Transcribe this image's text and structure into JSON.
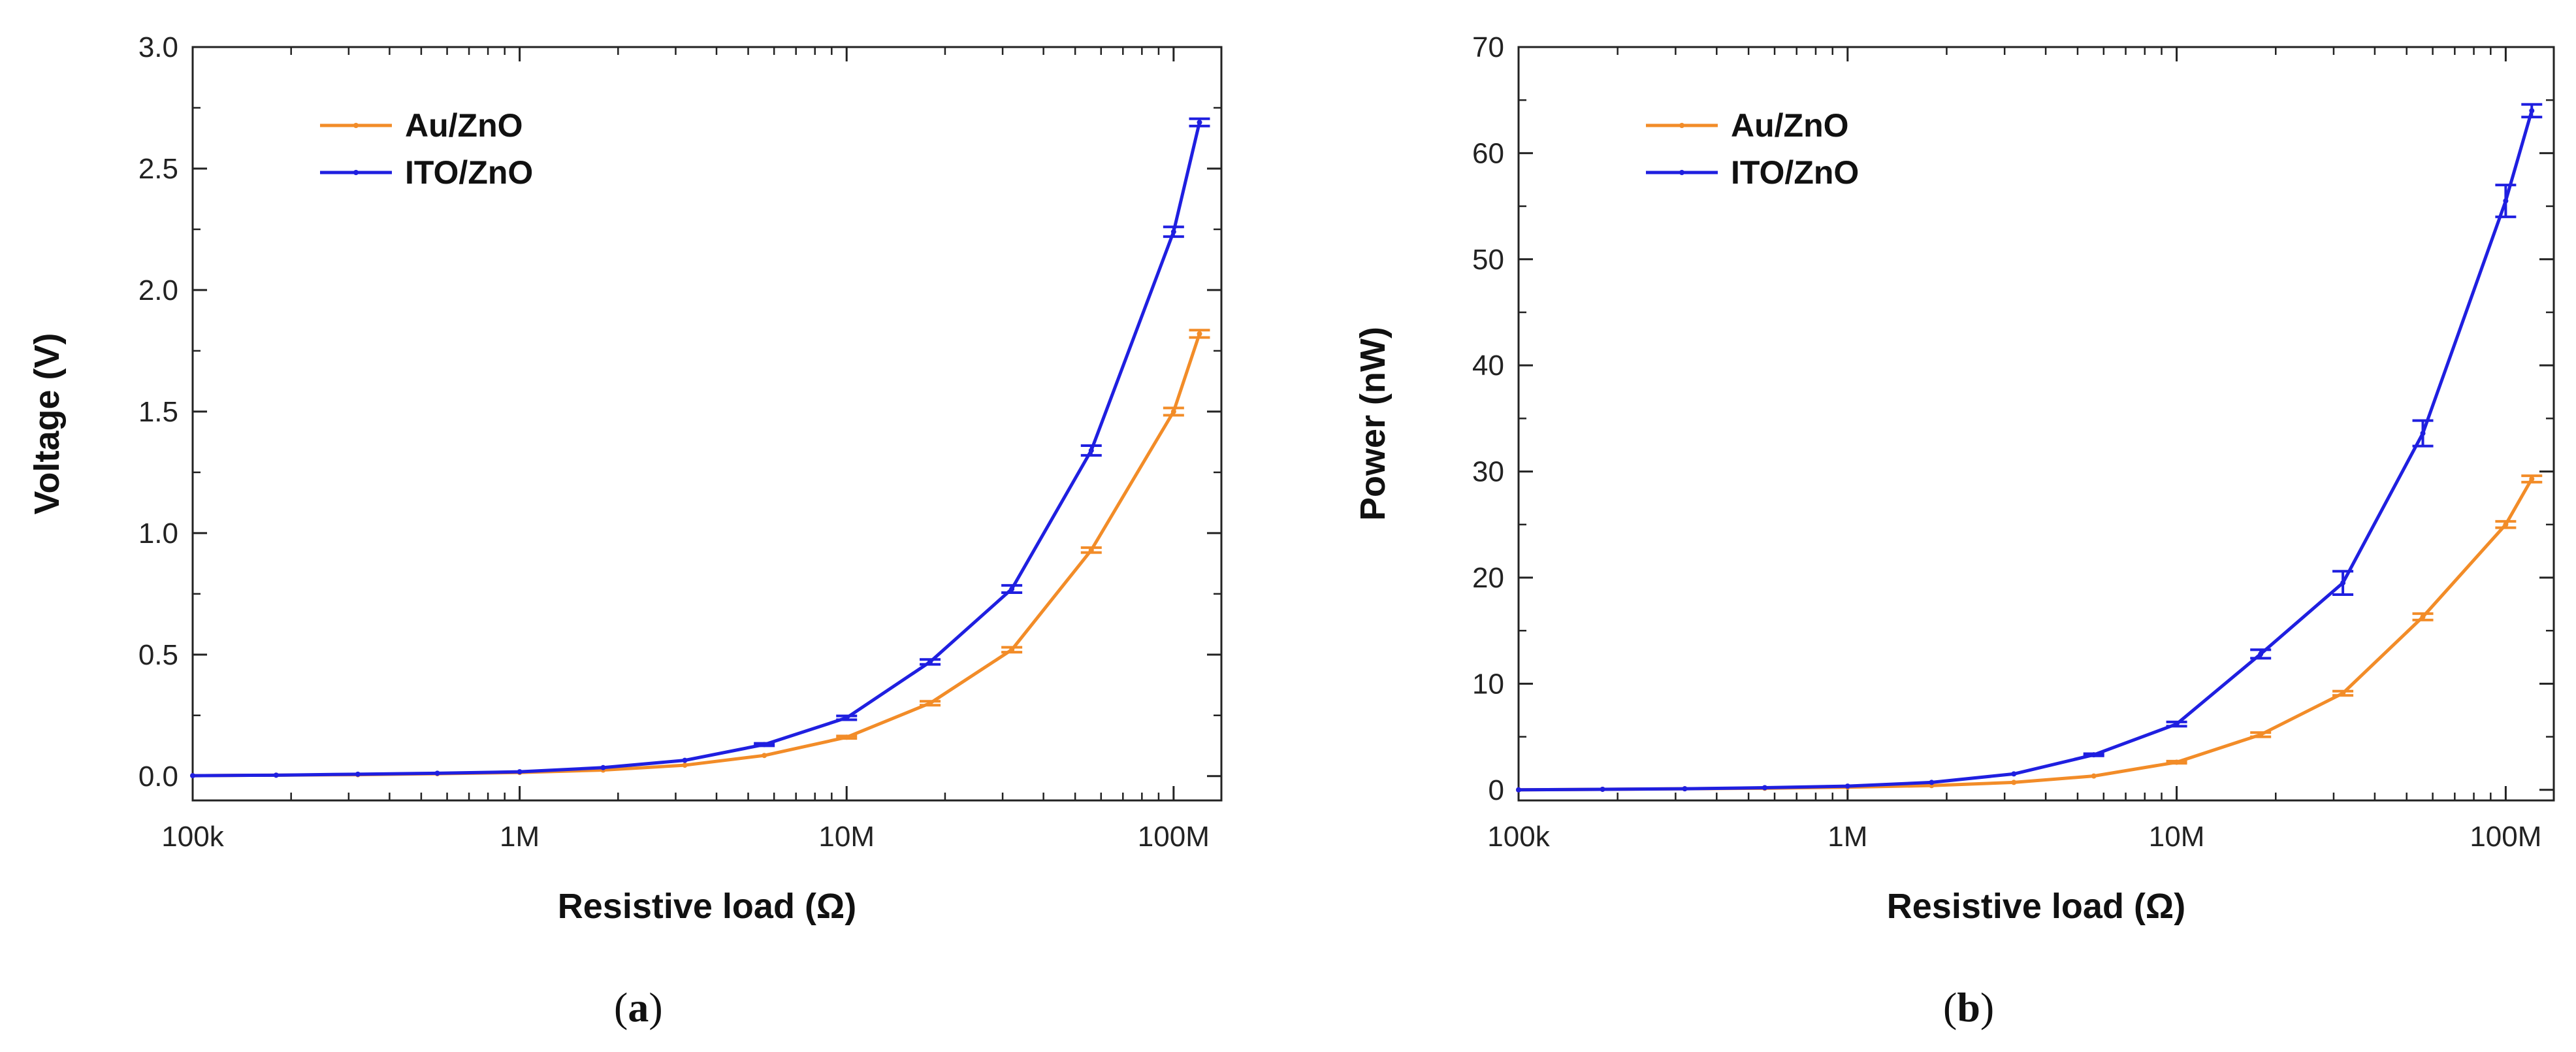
{
  "chart_data": [
    {
      "type": "line",
      "panel_label": {
        "open": "(",
        "letter": "a",
        "close": ")"
      },
      "xlabel": "Resistive load (Ω)",
      "ylabel": "Voltage (V)",
      "xscale": "log",
      "xlim": [
        100000,
        140000000
      ],
      "ylim": [
        -0.1,
        3.0
      ],
      "x_ticks": [
        {
          "value": 100000,
          "label": "100k"
        },
        {
          "value": 1000000,
          "label": "1M"
        },
        {
          "value": 10000000,
          "label": "10M"
        },
        {
          "value": 100000000,
          "label": "100M"
        }
      ],
      "y_ticks": [
        {
          "value": 0.0,
          "label": "0.0"
        },
        {
          "value": 0.5,
          "label": "0.5"
        },
        {
          "value": 1.0,
          "label": "1.0"
        },
        {
          "value": 1.5,
          "label": "1.5"
        },
        {
          "value": 2.0,
          "label": "2.0"
        },
        {
          "value": 2.5,
          "label": "2.5"
        },
        {
          "value": 3.0,
          "label": "3.0"
        }
      ],
      "legend": "top-left",
      "grid": false,
      "series": [
        {
          "name": "Au/ZnO",
          "color": "#F28C28",
          "x": [
            100000,
            180000,
            320000,
            560000,
            1000000,
            1800000,
            3200000,
            5600000,
            10000000,
            18000000,
            32000000,
            56000000,
            100000000,
            120000000
          ],
          "y": [
            0.002,
            0.004,
            0.006,
            0.01,
            0.015,
            0.025,
            0.045,
            0.085,
            0.16,
            0.3,
            0.52,
            0.93,
            1.5,
            1.82
          ],
          "err": [
            0,
            0,
            0,
            0,
            0,
            0,
            0,
            0,
            0.005,
            0.008,
            0.01,
            0.01,
            0.015,
            0.015
          ]
        },
        {
          "name": "ITO/ZnO",
          "color": "#1F1FE0",
          "x": [
            100000,
            180000,
            320000,
            560000,
            1000000,
            1800000,
            3200000,
            5600000,
            10000000,
            18000000,
            32000000,
            56000000,
            100000000,
            120000000
          ],
          "y": [
            0.002,
            0.004,
            0.008,
            0.012,
            0.018,
            0.035,
            0.065,
            0.13,
            0.24,
            0.47,
            0.77,
            1.34,
            2.24,
            2.69
          ],
          "err": [
            0,
            0,
            0,
            0,
            0,
            0,
            0,
            0.005,
            0.008,
            0.01,
            0.015,
            0.02,
            0.02,
            0.015
          ]
        }
      ]
    },
    {
      "type": "line",
      "panel_label": {
        "open": "(",
        "letter": "b",
        "close": ")"
      },
      "xlabel": "Resistive load (Ω)",
      "ylabel": "Power (nW)",
      "xscale": "log",
      "xlim": [
        100000,
        140000000
      ],
      "ylim": [
        -1,
        70
      ],
      "x_ticks": [
        {
          "value": 100000,
          "label": "100k"
        },
        {
          "value": 1000000,
          "label": "1M"
        },
        {
          "value": 10000000,
          "label": "10M"
        },
        {
          "value": 100000000,
          "label": "100M"
        }
      ],
      "y_ticks": [
        {
          "value": 0,
          "label": "0"
        },
        {
          "value": 10,
          "label": "10"
        },
        {
          "value": 20,
          "label": "20"
        },
        {
          "value": 30,
          "label": "30"
        },
        {
          "value": 40,
          "label": "40"
        },
        {
          "value": 50,
          "label": "50"
        },
        {
          "value": 60,
          "label": "60"
        },
        {
          "value": 70,
          "label": "70"
        }
      ],
      "legend": "top-left",
      "grid": false,
      "series": [
        {
          "name": "Au/ZnO",
          "color": "#F28C28",
          "x": [
            100000,
            180000,
            320000,
            560000,
            1000000,
            1800000,
            3200000,
            5600000,
            10000000,
            18000000,
            32000000,
            56000000,
            100000000,
            120000000
          ],
          "y": [
            0.0,
            0.05,
            0.1,
            0.15,
            0.25,
            0.4,
            0.7,
            1.3,
            2.6,
            5.2,
            9.1,
            16.3,
            25.0,
            29.3
          ],
          "err": [
            0,
            0,
            0,
            0,
            0,
            0,
            0,
            0,
            0.1,
            0.2,
            0.2,
            0.3,
            0.3,
            0.3
          ]
        },
        {
          "name": "ITO/ZnO",
          "color": "#1F1FE0",
          "x": [
            100000,
            180000,
            320000,
            560000,
            1000000,
            1800000,
            3200000,
            5600000,
            10000000,
            18000000,
            32000000,
            56000000,
            100000000,
            120000000
          ],
          "y": [
            0.0,
            0.05,
            0.1,
            0.2,
            0.35,
            0.7,
            1.5,
            3.3,
            6.2,
            12.8,
            19.5,
            33.6,
            55.5,
            64.0
          ],
          "err": [
            0,
            0,
            0,
            0,
            0,
            0,
            0,
            0.1,
            0.2,
            0.4,
            1.1,
            1.2,
            1.5,
            0.6
          ]
        }
      ]
    }
  ]
}
